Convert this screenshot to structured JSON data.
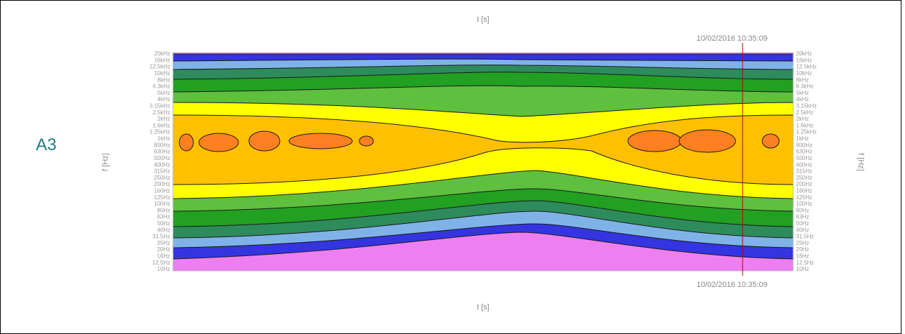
{
  "label": "A3",
  "chart": {
    "top_axis_label": "t [s]",
    "bottom_axis_label": "t [s]",
    "top_timestamp": "10/02/2016 10:35:09",
    "bottom_timestamp": "10/02/2016 10:35:09",
    "left_axis_label": "f [Hz]",
    "right_axis_label": "f [Hz]",
    "frequency_ticks": [
      "10Hz",
      "12.5Hz",
      "16Hz",
      "20Hz",
      "25Hz",
      "31.5Hz",
      "40Hz",
      "50Hz",
      "63Hz",
      "80Hz",
      "100Hz",
      "125Hz",
      "160Hz",
      "200Hz",
      "250Hz",
      "315Hz",
      "400Hz",
      "500Hz",
      "630Hz",
      "800Hz",
      "1kHz",
      "1.25kHz",
      "1.6kHz",
      "2kHz",
      "2.5kHz",
      "3.15kHz",
      "4kHz",
      "5kHz",
      "6.3kHz",
      "8kHz",
      "10kHz",
      "12.5kHz",
      "16kHz",
      "20kHz"
    ]
  }
}
